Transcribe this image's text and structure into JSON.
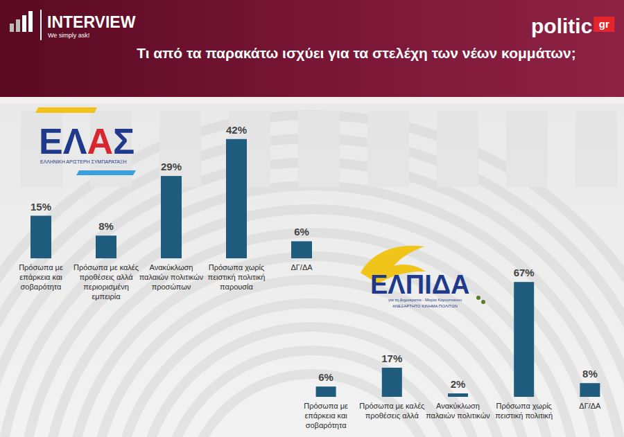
{
  "header": {
    "brand": "INTERVIEW",
    "tagline": "We simply ask!",
    "source": "politic",
    "source_suffix": "gr",
    "title": "Τι από τα παρακάτω ισχύει για τα στελέχη των νέων κομμάτων;"
  },
  "chart_data": [
    {
      "type": "bar",
      "title": "ΕΛΑΣ",
      "subtitle": "ΕΛΛΗΝΙΚΗ ΑΡΙΣΤΕΡΗ ΣΥΜΠΑΡΑΤΑΞΗ",
      "categories": [
        "Πρόσωπα με επάρκεια και σοβαρότητα",
        "Πρόσωπα με καλές προθέσεις αλλά περιορισμένη εμπειρία",
        "Ανακύκλωση παλαιών πολιτικών προσώπων",
        "Πρόσωπα χωρίς πειστική πολιτική παρουσία",
        "ΔΓ/ΔΑ"
      ],
      "values": [
        15,
        8,
        29,
        42,
        6
      ],
      "value_labels": [
        "15%",
        "8%",
        "29%",
        "42%",
        "6%"
      ],
      "color": "#1e5b7c",
      "ylim": [
        0,
        50
      ],
      "grid": false,
      "data_labels": true,
      "tick_labels": false
    },
    {
      "type": "bar",
      "title": "ΕΛΠΙΔΑ",
      "subtitle": "για τη Δημοκρατία - Μαρία Καρυστιανού",
      "annotations": [
        "ΑΝΕΞΑΡΤΗΤΟ ΚΙΝΗΜΑ ΠΟΛΙΤΩΝ"
      ],
      "categories": [
        "Πρόσωπα με επάρκεια και σοβαρότητα",
        "Πρόσωπα με καλές προθέσεις αλλά",
        "Ανακύκλωση παλαιών πολιτικών",
        "Πρόσωπα χωρίς πειστική πολιτική",
        "ΔΓ/ΔΑ"
      ],
      "values": [
        6,
        17,
        2,
        67,
        8
      ],
      "value_labels": [
        "6%",
        "17%",
        "2%",
        "67%",
        "8%"
      ],
      "color": "#1e5b7c",
      "ylim": [
        0,
        80
      ],
      "grid": false,
      "data_labels": true,
      "tick_labels": false
    }
  ]
}
